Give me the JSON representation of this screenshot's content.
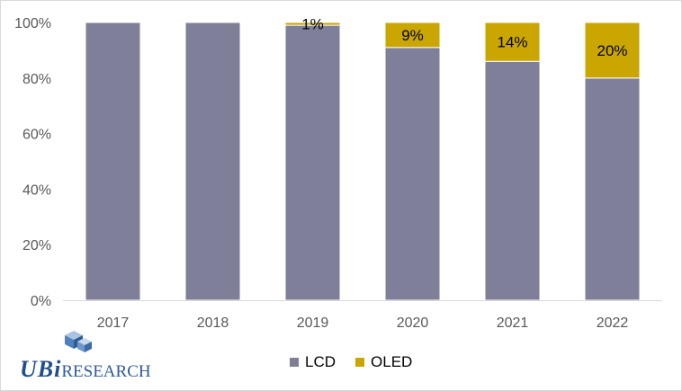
{
  "chart_data": {
    "type": "bar",
    "stacked": true,
    "percent_stacked": true,
    "categories": [
      "2017",
      "2018",
      "2019",
      "2020",
      "2021",
      "2022"
    ],
    "series": [
      {
        "name": "LCD",
        "values": [
          100,
          100,
          99,
          91,
          86,
          80
        ],
        "color": "#7f7f9a",
        "labels": [
          "",
          "",
          "",
          "",
          "",
          ""
        ]
      },
      {
        "name": "OLED",
        "values": [
          0,
          0,
          1,
          9,
          14,
          20
        ],
        "color": "#c9a600",
        "labels": [
          "",
          "",
          "1%",
          "9%",
          "14%",
          "20%"
        ]
      }
    ],
    "y_ticks": [
      "0%",
      "20%",
      "40%",
      "60%",
      "80%",
      "100%"
    ],
    "ylim": [
      0,
      100
    ],
    "grid": false,
    "legend_position": "bottom"
  },
  "legend": {
    "lcd": "LCD",
    "oled": "OLED"
  },
  "logo": {
    "ubi": "UBi",
    "research": "RESEARCH"
  }
}
